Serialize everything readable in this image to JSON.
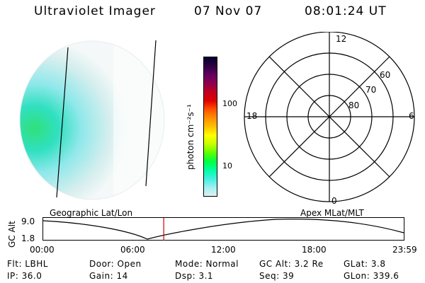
{
  "header": {
    "instrument": "Ultraviolet Imager",
    "date": "07 Nov 07",
    "time": "08:01:24 UT"
  },
  "colorbar": {
    "unit_label": "photon cm⁻²s⁻¹",
    "ticks": [
      "100",
      "10"
    ],
    "colors": [
      "#000030",
      "#300040",
      "#600060",
      "#900050",
      "#c00020",
      "#e00000",
      "#ff5000",
      "#ff9000",
      "#ffc000",
      "#ffff00",
      "#c8ff00",
      "#60ff00",
      "#00ff40",
      "#00ffa0",
      "#40f0e0",
      "#a0f0f0",
      "#e0f0f0"
    ]
  },
  "polar": {
    "mlt_labels": {
      "top": "12",
      "bottom": "0",
      "left": "18",
      "right": "6"
    },
    "lat_labels": [
      "60",
      "70",
      "80"
    ]
  },
  "timeline": {
    "left_title": "Geographic Lat/Lon",
    "right_title": "Apex MLat/MLT",
    "ylabel": "GC Alt",
    "y_top": "9.0",
    "y_bottom": "1.8",
    "x_ticks": [
      "00:00",
      "06:00",
      "12:00",
      "18:00",
      "23:59"
    ],
    "marker_color": "#d00000",
    "marker_fraction": 0.3343
  },
  "info": {
    "row1": {
      "flt": "Flt: LBHL",
      "door": "Door: Open",
      "mode": "Mode: Normal",
      "gcalt": "GC Alt: 3.2 Re",
      "glat": "GLat:   3.8"
    },
    "row2": {
      "ip": "IP: 36.0",
      "gain": "Gain: 14",
      "dsp": "Dsp:     3.1",
      "seq": "Seq: 39",
      "glon": "GLon: 339.6"
    }
  }
}
